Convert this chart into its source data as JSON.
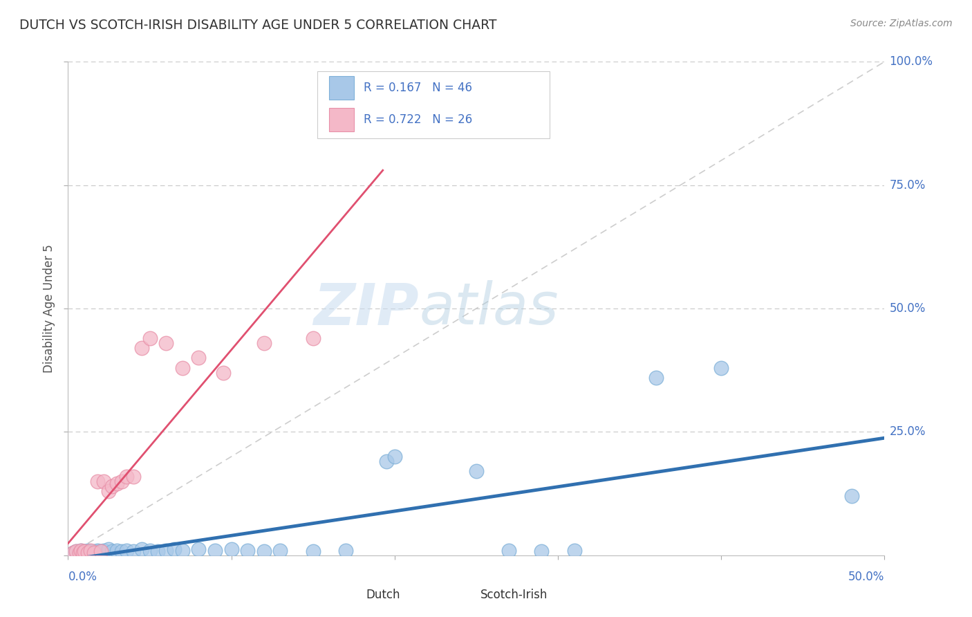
{
  "title": "DUTCH VS SCOTCH-IRISH DISABILITY AGE UNDER 5 CORRELATION CHART",
  "source": "Source: ZipAtlas.com",
  "ylabel": "Disability Age Under 5",
  "xlim": [
    0.0,
    0.5
  ],
  "ylim": [
    0.0,
    1.0
  ],
  "dutch_color": "#A8C8E8",
  "dutch_edge_color": "#7EB0D8",
  "scotch_color": "#F4B8C8",
  "scotch_edge_color": "#E890A8",
  "dutch_line_color": "#3070B0",
  "scotch_line_color": "#E05070",
  "ref_line_color": "#C8C8C8",
  "legend_text_color": "#4472C4",
  "axis_label_color": "#4472C4",
  "title_color": "#333333",
  "source_color": "#888888",
  "watermark_zip_color": "#C8DCF0",
  "watermark_atlas_color": "#B0CDE0",
  "dutch_x": [
    0.003,
    0.005,
    0.007,
    0.008,
    0.009,
    0.01,
    0.011,
    0.012,
    0.013,
    0.014,
    0.015,
    0.016,
    0.017,
    0.018,
    0.019,
    0.02,
    0.022,
    0.025,
    0.027,
    0.03,
    0.033,
    0.036,
    0.04,
    0.045,
    0.05,
    0.055,
    0.06,
    0.065,
    0.07,
    0.08,
    0.09,
    0.1,
    0.11,
    0.12,
    0.13,
    0.15,
    0.17,
    0.195,
    0.2,
    0.25,
    0.27,
    0.29,
    0.31,
    0.36,
    0.4,
    0.48
  ],
  "dutch_y": [
    0.005,
    0.008,
    0.006,
    0.01,
    0.005,
    0.008,
    0.006,
    0.01,
    0.005,
    0.008,
    0.006,
    0.008,
    0.005,
    0.01,
    0.006,
    0.008,
    0.01,
    0.012,
    0.008,
    0.01,
    0.008,
    0.01,
    0.008,
    0.012,
    0.01,
    0.008,
    0.01,
    0.012,
    0.01,
    0.012,
    0.01,
    0.012,
    0.01,
    0.008,
    0.01,
    0.008,
    0.01,
    0.19,
    0.2,
    0.17,
    0.01,
    0.008,
    0.01,
    0.36,
    0.38,
    0.12
  ],
  "scotch_x": [
    0.003,
    0.005,
    0.007,
    0.008,
    0.009,
    0.01,
    0.012,
    0.014,
    0.016,
    0.018,
    0.02,
    0.022,
    0.025,
    0.027,
    0.03,
    0.033,
    0.036,
    0.04,
    0.045,
    0.05,
    0.06,
    0.07,
    0.08,
    0.095,
    0.12,
    0.15
  ],
  "scotch_y": [
    0.006,
    0.008,
    0.006,
    0.01,
    0.005,
    0.008,
    0.006,
    0.01,
    0.005,
    0.15,
    0.008,
    0.15,
    0.13,
    0.14,
    0.145,
    0.15,
    0.16,
    0.16,
    0.42,
    0.44,
    0.43,
    0.38,
    0.4,
    0.37,
    0.43,
    0.44
  ]
}
